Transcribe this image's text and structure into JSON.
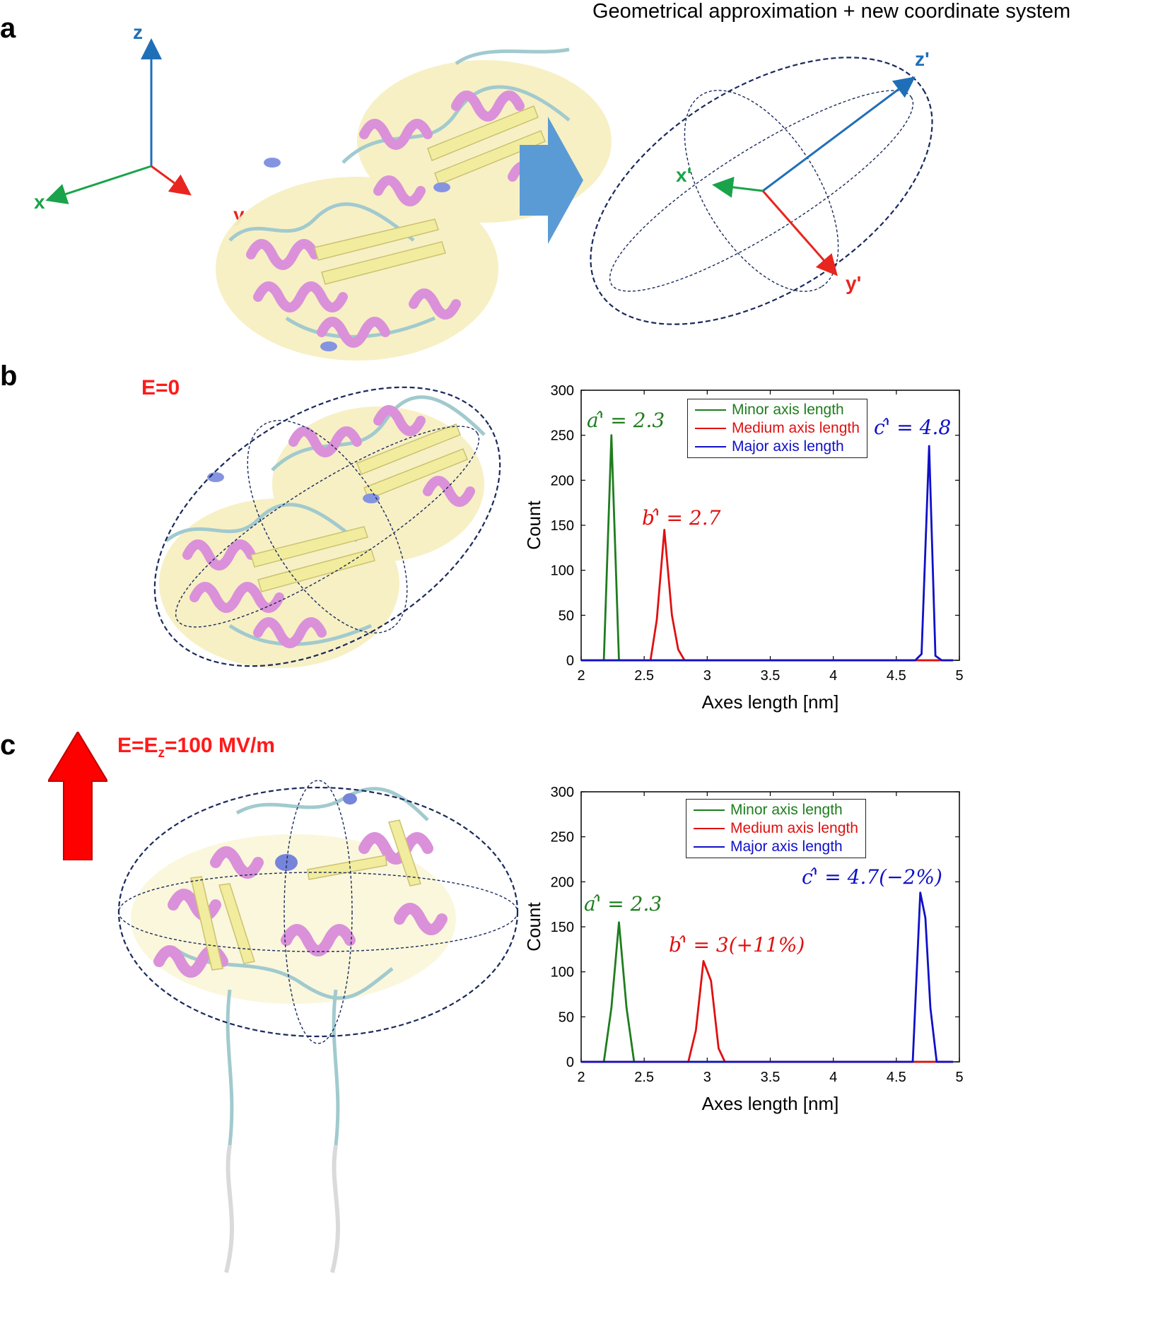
{
  "panels": {
    "a": {
      "letter": "a",
      "title": "Geometrical approximation + new coordinate system",
      "axes_original": {
        "x": "x",
        "y": "y",
        "z": "z"
      },
      "axes_new": {
        "x": "x'",
        "y": "y'",
        "z": "z'"
      }
    },
    "b": {
      "letter": "b",
      "field_label": "E=0"
    },
    "c": {
      "letter": "c",
      "field_label_main": "E=E",
      "field_label_sub": "z",
      "field_label_rest": "=100 MV/m"
    }
  },
  "colors": {
    "x_axis": "#1aa34a",
    "y_axis": "#e8251f",
    "z_axis": "#1f6fb8",
    "minor": "#1e7d1e",
    "medium": "#e01010",
    "major": "#1010c8",
    "ellipse": "#1a2a5c",
    "arrow_blue": "#5b9bd5",
    "arrow_red": "#ff0000",
    "helix": "#d98cd8",
    "sheet": "#f2ec9a",
    "coil": "#9cc8cc",
    "helix310": "#7f8fe0"
  },
  "chart_data": [
    {
      "id": "b",
      "type": "line",
      "xlabel": "Axes length [nm]",
      "ylabel": "Count",
      "xlim": [
        2,
        5
      ],
      "ylim": [
        0,
        300
      ],
      "xticks": [
        "2",
        "2.5",
        "3",
        "3.5",
        "4",
        "4.5",
        "5"
      ],
      "yticks": [
        "0",
        "50",
        "100",
        "150",
        "200",
        "250",
        "300"
      ],
      "legend_position": "top-center",
      "series": [
        {
          "name": "Minor axis length",
          "color": "#1e7d1e",
          "x": [
            2.0,
            2.18,
            2.24,
            2.3,
            2.35,
            4.95
          ],
          "y": [
            0,
            0,
            250,
            0,
            0,
            0
          ]
        },
        {
          "name": "Medium axis length",
          "color": "#e01010",
          "x": [
            2.0,
            2.55,
            2.6,
            2.66,
            2.72,
            2.77,
            2.82,
            4.95
          ],
          "y": [
            0,
            0,
            45,
            145,
            50,
            12,
            0,
            0
          ]
        },
        {
          "name": "Major axis length",
          "color": "#1010c8",
          "x": [
            2.0,
            4.65,
            4.7,
            4.76,
            4.81,
            4.86,
            4.95
          ],
          "y": [
            0,
            0,
            7,
            238,
            5,
            0,
            0
          ]
        }
      ],
      "annotations": [
        {
          "text": "a'̂ = 2.3",
          "color": "#1e7d1e"
        },
        {
          "text": "b'̂ = 2.7",
          "color": "#e01010"
        },
        {
          "text": "c'̂ = 4.8",
          "color": "#1010c8"
        }
      ]
    },
    {
      "id": "c",
      "type": "line",
      "xlabel": "Axes length [nm]",
      "ylabel": "Count",
      "xlim": [
        2,
        5
      ],
      "ylim": [
        0,
        300
      ],
      "xticks": [
        "2",
        "2.5",
        "3",
        "3.5",
        "4",
        "4.5",
        "5"
      ],
      "yticks": [
        "0",
        "50",
        "100",
        "150",
        "200",
        "250",
        "300"
      ],
      "legend_position": "top-center",
      "series": [
        {
          "name": "Minor axis length",
          "color": "#1e7d1e",
          "x": [
            2.0,
            2.18,
            2.24,
            2.3,
            2.36,
            2.42,
            4.95
          ],
          "y": [
            0,
            0,
            60,
            155,
            60,
            0,
            0
          ]
        },
        {
          "name": "Medium axis length",
          "color": "#e01010",
          "x": [
            2.0,
            2.85,
            2.91,
            2.97,
            3.03,
            3.09,
            3.14,
            4.95
          ],
          "y": [
            0,
            0,
            35,
            112,
            90,
            15,
            0,
            0
          ]
        },
        {
          "name": "Major axis length",
          "color": "#1010c8",
          "x": [
            2.0,
            4.63,
            4.69,
            4.73,
            4.77,
            4.82,
            4.95
          ],
          "y": [
            0,
            0,
            188,
            160,
            60,
            0,
            0
          ]
        }
      ],
      "annotations": [
        {
          "text": "a'̂ = 2.3",
          "color": "#1e7d1e"
        },
        {
          "text": "b'̂ = 3(+11%)",
          "color": "#e01010"
        },
        {
          "text": "c'̂ = 4.7(−2%)",
          "color": "#1010c8"
        }
      ]
    }
  ]
}
